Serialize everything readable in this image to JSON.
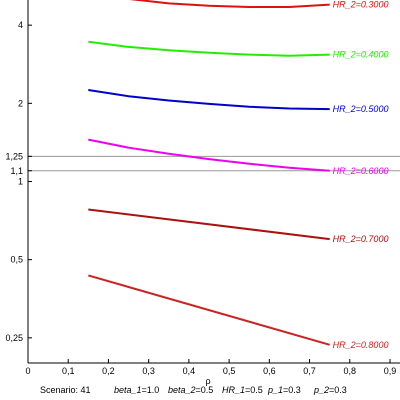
{
  "chart_data": {
    "type": "line",
    "xlabel": "ρ",
    "ylabel": "",
    "xlim": [
      0,
      0.9
    ],
    "ylim": [
      0.2,
      5.0
    ],
    "y_scale": "log",
    "grid": false,
    "x_ticks": [
      "0",
      "0,1",
      "0,2",
      "0,3",
      "0,4",
      "0,5",
      "0,6",
      "0,7",
      "0,8",
      "0,9"
    ],
    "x_tick_values": [
      0,
      0.1,
      0.2,
      0.3,
      0.4,
      0.5,
      0.6,
      0.7,
      0.8,
      0.9
    ],
    "y_ticks": [
      {
        "value": 4,
        "label": "4"
      },
      {
        "value": 2,
        "label": "2"
      },
      {
        "value": 1.25,
        "label": "1,25"
      },
      {
        "value": 1.1,
        "label": "1,1"
      },
      {
        "value": 1,
        "label": "1"
      },
      {
        "value": 0.5,
        "label": "0,5"
      },
      {
        "value": 0.25,
        "label": "0,25"
      }
    ],
    "reference_lines": [
      1.25,
      1.1
    ],
    "reference_line_color": "#999999",
    "x": [
      0.15,
      0.75
    ],
    "series": [
      {
        "name": "HR_2=0.3000",
        "color": "#dd1111",
        "points": [
          [
            0.15,
            5.35
          ],
          [
            0.25,
            5.05
          ],
          [
            0.35,
            4.85
          ],
          [
            0.45,
            4.75
          ],
          [
            0.55,
            4.7
          ],
          [
            0.65,
            4.7
          ],
          [
            0.75,
            4.8
          ]
        ]
      },
      {
        "name": "HR_2=0.4000",
        "color": "#22ee00",
        "points": [
          [
            0.15,
            3.45
          ],
          [
            0.25,
            3.3
          ],
          [
            0.35,
            3.2
          ],
          [
            0.45,
            3.13
          ],
          [
            0.55,
            3.08
          ],
          [
            0.65,
            3.05
          ],
          [
            0.75,
            3.08
          ]
        ]
      },
      {
        "name": "HR_2=0.5000",
        "color": "#0000cc",
        "points": [
          [
            0.15,
            2.25
          ],
          [
            0.25,
            2.13
          ],
          [
            0.35,
            2.05
          ],
          [
            0.45,
            1.99
          ],
          [
            0.55,
            1.94
          ],
          [
            0.65,
            1.91
          ],
          [
            0.75,
            1.9
          ]
        ]
      },
      {
        "name": "HR_2=0.6000",
        "color": "#ee00ee",
        "points": [
          [
            0.15,
            1.45
          ],
          [
            0.25,
            1.35
          ],
          [
            0.35,
            1.28
          ],
          [
            0.45,
            1.22
          ],
          [
            0.55,
            1.17
          ],
          [
            0.65,
            1.13
          ],
          [
            0.75,
            1.1
          ]
        ]
      },
      {
        "name": "HR_2=0.7000",
        "color": "#aa1111",
        "points": [
          [
            0.15,
            0.78
          ],
          [
            0.75,
            0.6
          ]
        ]
      },
      {
        "name": "HR_2=0.8000",
        "color": "#cc2222",
        "points": [
          [
            0.15,
            0.435
          ],
          [
            0.75,
            0.235
          ]
        ]
      }
    ]
  },
  "footer": {
    "scenario": "Scenario: 41",
    "params": [
      {
        "name": "beta_1",
        "value": "=1.0"
      },
      {
        "name": "beta_2",
        "value": "=0.5"
      },
      {
        "name": "HR_1",
        "value": "=0.5"
      },
      {
        "name": "p_1",
        "value": "=0.3"
      },
      {
        "name": "p_2",
        "value": "=0.3"
      }
    ]
  }
}
